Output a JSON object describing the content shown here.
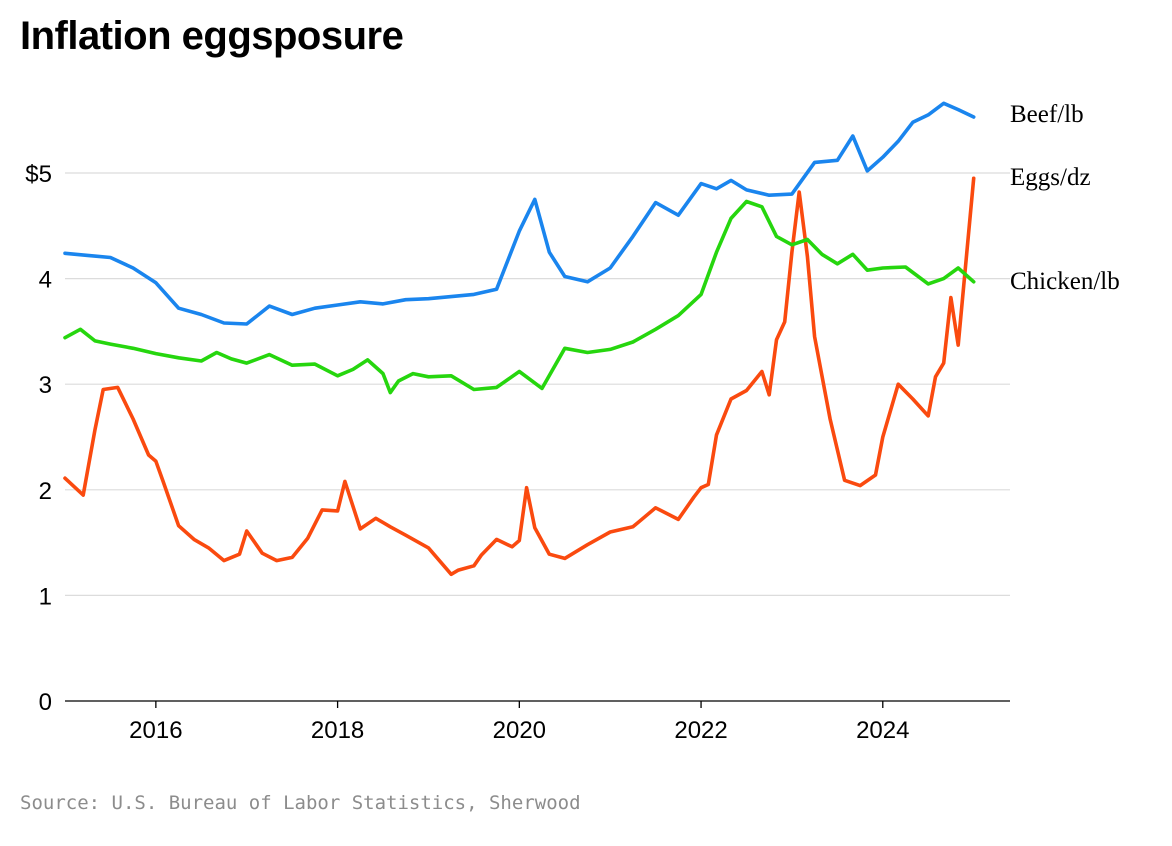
{
  "title": "Inflation eggsposure",
  "source": "Source: U.S. Bureau of Labor Statistics, Sherwood",
  "chart_data": {
    "type": "line",
    "title": "Inflation eggsposure",
    "xlabel": "",
    "ylabel": "",
    "xlim": [
      2015.0,
      2025.4
    ],
    "ylim": [
      0,
      5.8
    ],
    "x_ticks": [
      2016,
      2018,
      2020,
      2022,
      2024
    ],
    "x_tick_labels": [
      "2016",
      "2018",
      "2020",
      "2022",
      "2024"
    ],
    "y_ticks": [
      0,
      1,
      2,
      3,
      4,
      5
    ],
    "y_tick_labels": [
      "0",
      "1",
      "2",
      "3",
      "4",
      "$5"
    ],
    "grid": "horizontal",
    "legend": "labels at line ends",
    "series": [
      {
        "name": "Beef/lb",
        "color": "#1a85ee",
        "x": [
          2015.0,
          2015.25,
          2015.5,
          2015.75,
          2016.0,
          2016.25,
          2016.5,
          2016.75,
          2017.0,
          2017.25,
          2017.5,
          2017.75,
          2018.0,
          2018.25,
          2018.5,
          2018.75,
          2019.0,
          2019.25,
          2019.5,
          2019.75,
          2020.0,
          2020.17,
          2020.33,
          2020.5,
          2020.75,
          2021.0,
          2021.25,
          2021.5,
          2021.75,
          2022.0,
          2022.17,
          2022.33,
          2022.5,
          2022.75,
          2023.0,
          2023.25,
          2023.5,
          2023.67,
          2023.83,
          2024.0,
          2024.17,
          2024.33,
          2024.5,
          2024.67,
          2024.83,
          2025.0
        ],
        "y": [
          4.24,
          4.22,
          4.2,
          4.1,
          3.96,
          3.72,
          3.66,
          3.58,
          3.57,
          3.74,
          3.66,
          3.72,
          3.75,
          3.78,
          3.76,
          3.8,
          3.81,
          3.83,
          3.85,
          3.9,
          4.45,
          4.75,
          4.25,
          4.02,
          3.97,
          4.1,
          4.4,
          4.72,
          4.6,
          4.9,
          4.85,
          4.93,
          4.84,
          4.79,
          4.8,
          5.1,
          5.12,
          5.35,
          5.02,
          5.15,
          5.3,
          5.48,
          5.55,
          5.66,
          5.6,
          5.53
        ]
      },
      {
        "name": "Eggs/dz",
        "color": "#fa4a0f",
        "x": [
          2015.0,
          2015.2,
          2015.33,
          2015.42,
          2015.58,
          2015.75,
          2015.92,
          2016.0,
          2016.08,
          2016.25,
          2016.42,
          2016.58,
          2016.75,
          2016.92,
          2017.0,
          2017.17,
          2017.33,
          2017.5,
          2017.67,
          2017.83,
          2018.0,
          2018.08,
          2018.25,
          2018.42,
          2018.58,
          2018.75,
          2019.0,
          2019.25,
          2019.33,
          2019.5,
          2019.58,
          2019.75,
          2019.92,
          2020.0,
          2020.08,
          2020.17,
          2020.33,
          2020.5,
          2020.75,
          2021.0,
          2021.25,
          2021.5,
          2021.75,
          2021.92,
          2022.0,
          2022.08,
          2022.17,
          2022.33,
          2022.5,
          2022.67,
          2022.75,
          2022.83,
          2022.92,
          2023.0,
          2023.08,
          2023.17,
          2023.25,
          2023.42,
          2023.58,
          2023.75,
          2023.92,
          2024.0,
          2024.17,
          2024.33,
          2024.5,
          2024.58,
          2024.67,
          2024.75,
          2024.83,
          2025.0
        ],
        "y": [
          2.11,
          1.95,
          2.57,
          2.95,
          2.97,
          2.67,
          2.33,
          2.27,
          2.08,
          1.66,
          1.53,
          1.45,
          1.33,
          1.39,
          1.61,
          1.4,
          1.33,
          1.36,
          1.54,
          1.81,
          1.8,
          2.08,
          1.63,
          1.73,
          1.65,
          1.57,
          1.45,
          1.2,
          1.24,
          1.28,
          1.38,
          1.53,
          1.46,
          1.52,
          2.02,
          1.64,
          1.39,
          1.35,
          1.48,
          1.6,
          1.65,
          1.83,
          1.72,
          1.93,
          2.02,
          2.05,
          2.52,
          2.86,
          2.94,
          3.12,
          2.9,
          3.42,
          3.59,
          4.25,
          4.82,
          4.21,
          3.45,
          2.67,
          2.09,
          2.04,
          2.14,
          2.5,
          3.0,
          2.86,
          2.7,
          3.07,
          3.2,
          3.82,
          3.37,
          4.95
        ]
      },
      {
        "name": "Chicken/lb",
        "color": "#26d60e",
        "x": [
          2015.0,
          2015.17,
          2015.33,
          2015.5,
          2015.75,
          2016.0,
          2016.25,
          2016.5,
          2016.67,
          2016.83,
          2017.0,
          2017.25,
          2017.5,
          2017.75,
          2018.0,
          2018.17,
          2018.33,
          2018.5,
          2018.58,
          2018.67,
          2018.83,
          2019.0,
          2019.25,
          2019.5,
          2019.75,
          2020.0,
          2020.25,
          2020.5,
          2020.75,
          2021.0,
          2021.25,
          2021.5,
          2021.75,
          2022.0,
          2022.17,
          2022.33,
          2022.5,
          2022.67,
          2022.83,
          2023.0,
          2023.17,
          2023.33,
          2023.5,
          2023.67,
          2023.83,
          2024.0,
          2024.25,
          2024.5,
          2024.67,
          2024.83,
          2025.0
        ],
        "y": [
          3.44,
          3.52,
          3.41,
          3.38,
          3.34,
          3.29,
          3.25,
          3.22,
          3.3,
          3.24,
          3.2,
          3.28,
          3.18,
          3.19,
          3.08,
          3.14,
          3.23,
          3.1,
          2.92,
          3.03,
          3.1,
          3.07,
          3.08,
          2.95,
          2.97,
          3.12,
          2.96,
          3.34,
          3.3,
          3.33,
          3.4,
          3.52,
          3.65,
          3.85,
          4.25,
          4.57,
          4.73,
          4.68,
          4.4,
          4.32,
          4.37,
          4.23,
          4.14,
          4.23,
          4.08,
          4.1,
          4.11,
          3.95,
          4.0,
          4.1,
          3.97
        ]
      }
    ]
  }
}
